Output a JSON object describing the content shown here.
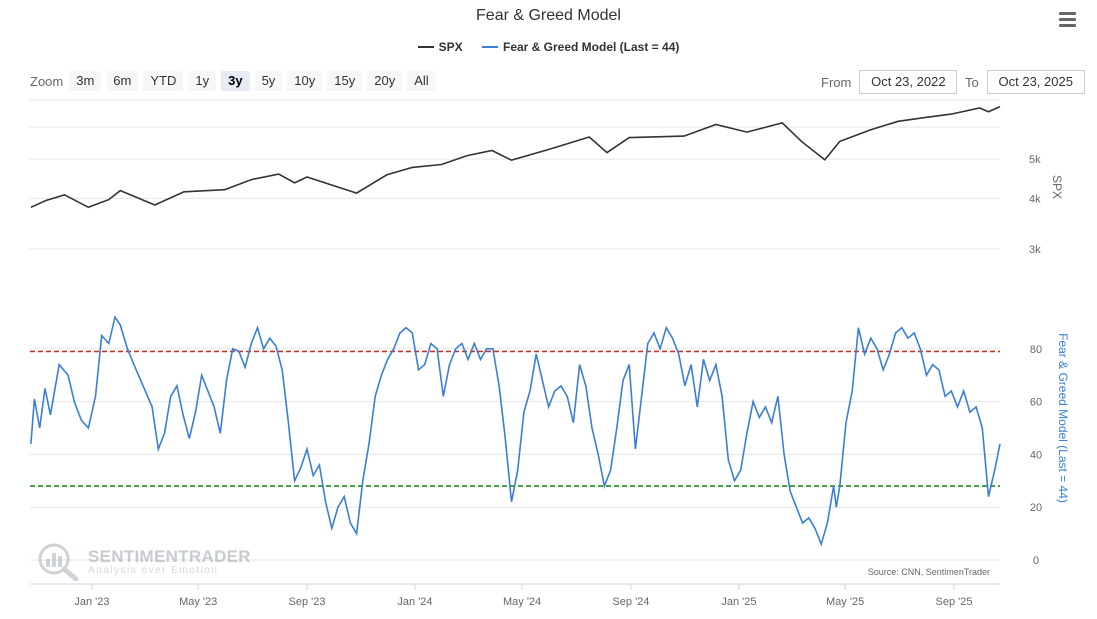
{
  "title": "Fear & Greed Model",
  "legend": [
    {
      "name": "SPX",
      "color": "#333333"
    },
    {
      "name": "Fear & Greed Model (Last = 44)",
      "color": "#3a7fd5"
    }
  ],
  "menu_icon": "hamburger-menu-icon",
  "zoom": {
    "label": "Zoom",
    "buttons": [
      "3m",
      "6m",
      "YTD",
      "1y",
      "3y",
      "5y",
      "10y",
      "15y",
      "20y",
      "All"
    ],
    "active": "3y"
  },
  "range": {
    "from_label": "From",
    "from_value": "Oct 23, 2022",
    "to_label": "To",
    "to_value": "Oct 23, 2025"
  },
  "watermark": {
    "brand": "SENTIMENTRADER",
    "tagline": "Analysis over Emotion"
  },
  "source": "Source: CNN, SentimenTrader",
  "chart_data": [
    {
      "type": "line",
      "series": [
        {
          "name": "SPX",
          "color": "#333333"
        }
      ],
      "ylabel": "SPX",
      "y_scale": "log",
      "y_ticks": [
        {
          "value": 3000,
          "label": "3k"
        },
        {
          "value": 4000,
          "label": "4k"
        },
        {
          "value": 5000,
          "label": "5k"
        }
      ],
      "ylim": [
        2600,
        7000
      ],
      "x_range": [
        "2022-10-23",
        "2025-10-23"
      ],
      "points": [
        [
          "2022-10-24",
          3800
        ],
        [
          "2022-11-10",
          3950
        ],
        [
          "2022-12-01",
          4080
        ],
        [
          "2022-12-28",
          3800
        ],
        [
          "2023-01-20",
          3970
        ],
        [
          "2023-02-02",
          4180
        ],
        [
          "2023-03-13",
          3850
        ],
        [
          "2023-04-15",
          4150
        ],
        [
          "2023-05-31",
          4200
        ],
        [
          "2023-06-30",
          4450
        ],
        [
          "2023-07-31",
          4590
        ],
        [
          "2023-08-18",
          4370
        ],
        [
          "2023-09-01",
          4515
        ],
        [
          "2023-10-27",
          4120
        ],
        [
          "2023-11-30",
          4570
        ],
        [
          "2023-12-29",
          4770
        ],
        [
          "2024-01-31",
          4850
        ],
        [
          "2024-02-29",
          5100
        ],
        [
          "2024-03-28",
          5250
        ],
        [
          "2024-04-19",
          4970
        ],
        [
          "2024-05-31",
          5280
        ],
        [
          "2024-07-16",
          5670
        ],
        [
          "2024-08-05",
          5190
        ],
        [
          "2024-08-30",
          5650
        ],
        [
          "2024-10-31",
          5700
        ],
        [
          "2024-12-06",
          6090
        ],
        [
          "2025-01-10",
          5830
        ],
        [
          "2025-02-19",
          6145
        ],
        [
          "2025-03-13",
          5520
        ],
        [
          "2025-04-08",
          4980
        ],
        [
          "2025-04-25",
          5530
        ],
        [
          "2025-05-30",
          5910
        ],
        [
          "2025-06-30",
          6200
        ],
        [
          "2025-07-31",
          6340
        ],
        [
          "2025-08-29",
          6460
        ],
        [
          "2025-09-30",
          6690
        ],
        [
          "2025-10-10",
          6550
        ],
        [
          "2025-10-23",
          6740
        ]
      ]
    },
    {
      "type": "line",
      "series": [
        {
          "name": "Fear & Greed Model (Last = 44)",
          "color": "#3a7fd5"
        }
      ],
      "ylabel": "Fear & Greed Model (Last = 44)",
      "ylim": [
        0,
        100
      ],
      "y_ticks": [
        0,
        20,
        40,
        60,
        80
      ],
      "x_range": [
        "2022-10-23",
        "2025-10-23"
      ],
      "x_ticks": [
        {
          "date": "2023-01-01",
          "label": "Jan '23"
        },
        {
          "date": "2023-05-01",
          "label": "May '23"
        },
        {
          "date": "2023-09-01",
          "label": "Sep '23"
        },
        {
          "date": "2024-01-01",
          "label": "Jan '24"
        },
        {
          "date": "2024-05-01",
          "label": "May '24"
        },
        {
          "date": "2024-09-01",
          "label": "Sep '24"
        },
        {
          "date": "2025-01-01",
          "label": "Jan '25"
        },
        {
          "date": "2025-05-01",
          "label": "May '25"
        },
        {
          "date": "2025-09-01",
          "label": "Sep '25"
        }
      ],
      "reference_lines": [
        {
          "value": 79,
          "color": "#c0392b"
        },
        {
          "value": 28,
          "color": "#1a8a1a"
        }
      ],
      "points": [
        [
          "2022-10-24",
          44
        ],
        [
          "2022-10-28",
          61
        ],
        [
          "2022-11-03",
          50
        ],
        [
          "2022-11-09",
          65
        ],
        [
          "2022-11-15",
          55
        ],
        [
          "2022-11-25",
          74
        ],
        [
          "2022-12-05",
          70
        ],
        [
          "2022-12-12",
          60
        ],
        [
          "2022-12-20",
          53
        ],
        [
          "2022-12-28",
          50
        ],
        [
          "2023-01-05",
          62
        ],
        [
          "2023-01-12",
          85
        ],
        [
          "2023-01-20",
          82
        ],
        [
          "2023-01-27",
          92
        ],
        [
          "2023-02-02",
          89
        ],
        [
          "2023-02-10",
          80
        ],
        [
          "2023-02-20",
          72
        ],
        [
          "2023-03-01",
          65
        ],
        [
          "2023-03-10",
          58
        ],
        [
          "2023-03-17",
          42
        ],
        [
          "2023-03-24",
          48
        ],
        [
          "2023-03-31",
          62
        ],
        [
          "2023-04-07",
          66
        ],
        [
          "2023-04-14",
          55
        ],
        [
          "2023-04-21",
          46
        ],
        [
          "2023-04-28",
          56
        ],
        [
          "2023-05-05",
          70
        ],
        [
          "2023-05-12",
          64
        ],
        [
          "2023-05-19",
          58
        ],
        [
          "2023-05-26",
          48
        ],
        [
          "2023-06-02",
          68
        ],
        [
          "2023-06-09",
          80
        ],
        [
          "2023-06-16",
          79
        ],
        [
          "2023-06-23",
          73
        ],
        [
          "2023-06-30",
          82
        ],
        [
          "2023-07-07",
          88
        ],
        [
          "2023-07-14",
          80
        ],
        [
          "2023-07-21",
          84
        ],
        [
          "2023-07-28",
          81
        ],
        [
          "2023-08-04",
          72
        ],
        [
          "2023-08-11",
          52
        ],
        [
          "2023-08-18",
          30
        ],
        [
          "2023-08-25",
          35
        ],
        [
          "2023-09-01",
          42
        ],
        [
          "2023-09-08",
          32
        ],
        [
          "2023-09-15",
          36
        ],
        [
          "2023-09-22",
          22
        ],
        [
          "2023-09-29",
          12
        ],
        [
          "2023-10-06",
          20
        ],
        [
          "2023-10-13",
          24
        ],
        [
          "2023-10-20",
          14
        ],
        [
          "2023-10-27",
          10
        ],
        [
          "2023-11-03",
          30
        ],
        [
          "2023-11-10",
          44
        ],
        [
          "2023-11-17",
          62
        ],
        [
          "2023-11-24",
          70
        ],
        [
          "2023-12-01",
          76
        ],
        [
          "2023-12-08",
          80
        ],
        [
          "2023-12-15",
          86
        ],
        [
          "2023-12-22",
          88
        ],
        [
          "2023-12-29",
          86
        ],
        [
          "2024-01-05",
          72
        ],
        [
          "2024-01-12",
          74
        ],
        [
          "2024-01-19",
          82
        ],
        [
          "2024-01-26",
          80
        ],
        [
          "2024-02-02",
          62
        ],
        [
          "2024-02-09",
          74
        ],
        [
          "2024-02-16",
          80
        ],
        [
          "2024-02-23",
          82
        ],
        [
          "2024-03-01",
          76
        ],
        [
          "2024-03-08",
          82
        ],
        [
          "2024-03-15",
          76
        ],
        [
          "2024-03-22",
          80
        ],
        [
          "2024-03-29",
          80
        ],
        [
          "2024-04-05",
          66
        ],
        [
          "2024-04-12",
          46
        ],
        [
          "2024-04-19",
          22
        ],
        [
          "2024-04-26",
          34
        ],
        [
          "2024-05-03",
          56
        ],
        [
          "2024-05-10",
          64
        ],
        [
          "2024-05-17",
          78
        ],
        [
          "2024-05-24",
          68
        ],
        [
          "2024-05-31",
          58
        ],
        [
          "2024-06-07",
          64
        ],
        [
          "2024-06-14",
          66
        ],
        [
          "2024-06-21",
          62
        ],
        [
          "2024-06-28",
          52
        ],
        [
          "2024-07-05",
          74
        ],
        [
          "2024-07-12",
          66
        ],
        [
          "2024-07-19",
          50
        ],
        [
          "2024-07-26",
          40
        ],
        [
          "2024-08-02",
          28
        ],
        [
          "2024-08-09",
          34
        ],
        [
          "2024-08-16",
          50
        ],
        [
          "2024-08-23",
          68
        ],
        [
          "2024-08-30",
          74
        ],
        [
          "2024-09-06",
          42
        ],
        [
          "2024-09-13",
          62
        ],
        [
          "2024-09-20",
          82
        ],
        [
          "2024-09-27",
          86
        ],
        [
          "2024-10-04",
          80
        ],
        [
          "2024-10-11",
          88
        ],
        [
          "2024-10-18",
          84
        ],
        [
          "2024-10-25",
          78
        ],
        [
          "2024-11-01",
          66
        ],
        [
          "2024-11-08",
          74
        ],
        [
          "2024-11-15",
          58
        ],
        [
          "2024-11-22",
          76
        ],
        [
          "2024-11-29",
          68
        ],
        [
          "2024-12-06",
          74
        ],
        [
          "2024-12-13",
          62
        ],
        [
          "2024-12-20",
          38
        ],
        [
          "2024-12-27",
          30
        ],
        [
          "2025-01-03",
          34
        ],
        [
          "2025-01-10",
          48
        ],
        [
          "2025-01-17",
          60
        ],
        [
          "2025-01-24",
          54
        ],
        [
          "2025-01-31",
          58
        ],
        [
          "2025-02-07",
          52
        ],
        [
          "2025-02-14",
          62
        ],
        [
          "2025-02-21",
          40
        ],
        [
          "2025-02-28",
          26
        ],
        [
          "2025-03-07",
          20
        ],
        [
          "2025-03-14",
          14
        ],
        [
          "2025-03-21",
          16
        ],
        [
          "2025-03-28",
          12
        ],
        [
          "2025-04-04",
          6
        ],
        [
          "2025-04-11",
          14
        ],
        [
          "2025-04-18",
          28
        ],
        [
          "2025-04-21",
          20
        ],
        [
          "2025-04-25",
          28
        ],
        [
          "2025-05-02",
          52
        ],
        [
          "2025-05-09",
          64
        ],
        [
          "2025-05-16",
          88
        ],
        [
          "2025-05-23",
          78
        ],
        [
          "2025-05-30",
          84
        ],
        [
          "2025-06-06",
          80
        ],
        [
          "2025-06-13",
          72
        ],
        [
          "2025-06-20",
          78
        ],
        [
          "2025-06-27",
          86
        ],
        [
          "2025-07-04",
          88
        ],
        [
          "2025-07-11",
          84
        ],
        [
          "2025-07-18",
          86
        ],
        [
          "2025-07-25",
          80
        ],
        [
          "2025-08-01",
          70
        ],
        [
          "2025-08-08",
          74
        ],
        [
          "2025-08-15",
          72
        ],
        [
          "2025-08-22",
          62
        ],
        [
          "2025-08-29",
          64
        ],
        [
          "2025-09-05",
          58
        ],
        [
          "2025-09-12",
          64
        ],
        [
          "2025-09-19",
          56
        ],
        [
          "2025-09-26",
          58
        ],
        [
          "2025-10-03",
          50
        ],
        [
          "2025-10-10",
          24
        ],
        [
          "2025-10-17",
          34
        ],
        [
          "2025-10-23",
          44
        ]
      ]
    }
  ]
}
